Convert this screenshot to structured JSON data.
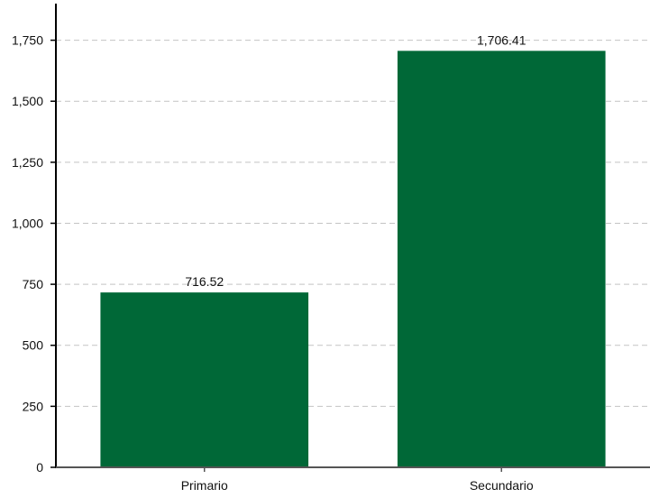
{
  "chart_data": {
    "type": "bar",
    "categories": [
      "Primario",
      "Secundario"
    ],
    "values": [
      716.52,
      1706.41
    ],
    "data_labels": [
      "716.52",
      "1,706.41"
    ],
    "title": "",
    "xlabel": "",
    "ylabel": "",
    "ylim": [
      0,
      1900
    ],
    "yticks": [
      0,
      250,
      500,
      750,
      1000,
      1250,
      1500,
      1750
    ],
    "ytick_labels": [
      "0",
      "250",
      "500",
      "750",
      "1,000",
      "1,250",
      "1,500",
      "1,750"
    ],
    "grid": true,
    "legend": "none",
    "bar_color": "#006837"
  }
}
